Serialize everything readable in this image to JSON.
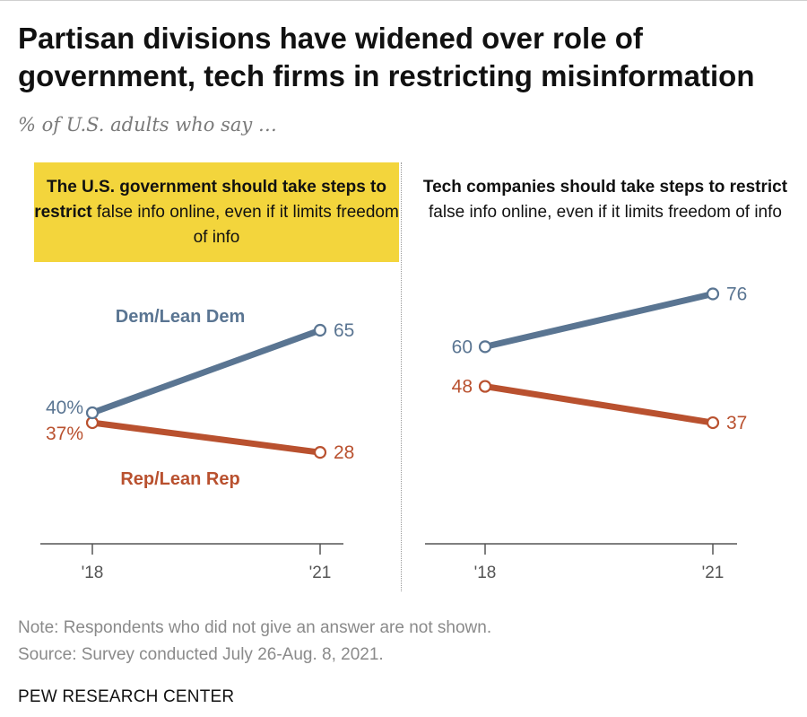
{
  "title": "Partisan divisions have widened over role of government, tech firms in restricting misinformation",
  "subtitle": "% of U.S. adults who say …",
  "panel1": {
    "bold": "The U.S. government should take steps to restrict",
    "rest": "false info online, even if it limits freedom of info"
  },
  "panel2": {
    "bold": "Tech companies should take steps to restrict",
    "rest": "false info online, even if it limits freedom of info"
  },
  "colors": {
    "dem": "#5a7592",
    "rep": "#b9512f",
    "highlight": "#f3d53c"
  },
  "chart_data": [
    {
      "type": "line",
      "title": "The U.S. government should take steps to restrict false info online, even if it limits freedom of info",
      "x": [
        "'18",
        "'21"
      ],
      "series": [
        {
          "name": "Dem/Lean Dem",
          "values": [
            40,
            65
          ],
          "labels": [
            "40%",
            "65"
          ]
        },
        {
          "name": "Rep/Lean Rep",
          "values": [
            37,
            28
          ],
          "labels": [
            "37%",
            "28"
          ]
        }
      ]
    },
    {
      "type": "line",
      "title": "Tech companies should take steps to restrict false info online, even if it limits freedom of info",
      "x": [
        "'18",
        "'21"
      ],
      "series": [
        {
          "name": "Dem/Lean Dem",
          "values": [
            60,
            76
          ],
          "labels": [
            "60",
            "76"
          ]
        },
        {
          "name": "Rep/Lean Rep",
          "values": [
            48,
            37
          ],
          "labels": [
            "48",
            "37"
          ]
        }
      ]
    }
  ],
  "note": "Note: Respondents who did not give an answer are not shown.",
  "source": "Source: Survey conducted July 26-Aug. 8, 2021.",
  "brand": "PEW RESEARCH CENTER"
}
